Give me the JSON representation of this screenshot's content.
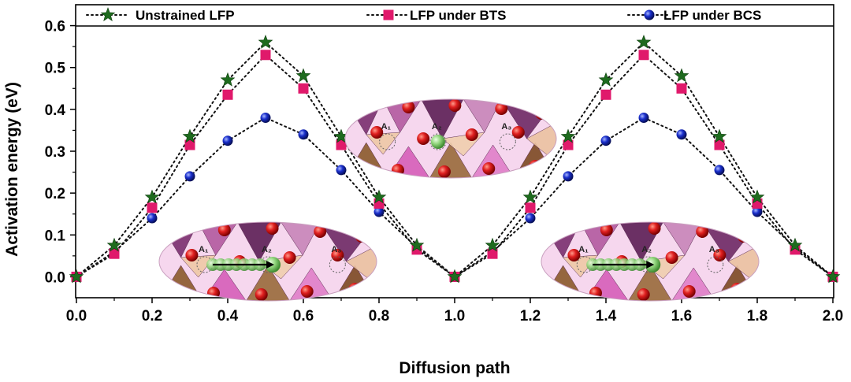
{
  "chart_data": {
    "type": "scatter",
    "xlabel": "Diffusion path",
    "ylabel": "Activation energy (eV)",
    "xlim": [
      0.0,
      2.0
    ],
    "ylim": [
      -0.05,
      0.65
    ],
    "xticks": [
      "0.0",
      "0.2",
      "0.4",
      "0.6",
      "0.8",
      "1.0",
      "1.2",
      "1.4",
      "1.6",
      "1.8",
      "2.0"
    ],
    "yticks": [
      "0.0",
      "0.1",
      "0.2",
      "0.3",
      "0.4",
      "0.5",
      "0.6"
    ],
    "legend_position": "top",
    "grid": false,
    "x": [
      0.0,
      0.1,
      0.2,
      0.3,
      0.4,
      0.5,
      0.6,
      0.7,
      0.8,
      0.9,
      1.0,
      1.1,
      1.2,
      1.3,
      1.4,
      1.5,
      1.6,
      1.7,
      1.8,
      1.9,
      2.0
    ],
    "series": [
      {
        "name": "Unstrained LFP",
        "marker": "star",
        "color": "#1e6b1e",
        "values": [
          0.0,
          0.075,
          0.19,
          0.335,
          0.47,
          0.56,
          0.48,
          0.335,
          0.19,
          0.075,
          0.0,
          0.075,
          0.19,
          0.335,
          0.47,
          0.56,
          0.48,
          0.335,
          0.19,
          0.075,
          0.0
        ]
      },
      {
        "name": "LFP under BTS",
        "marker": "square",
        "color": "#e0196b",
        "values": [
          0.0,
          0.055,
          0.165,
          0.315,
          0.435,
          0.53,
          0.45,
          0.315,
          0.175,
          0.065,
          0.0,
          0.055,
          0.165,
          0.315,
          0.435,
          0.53,
          0.45,
          0.315,
          0.175,
          0.065,
          0.0
        ]
      },
      {
        "name": "LFP under BCS",
        "marker": "circle",
        "color": "#1a2fb0",
        "values": [
          0.0,
          0.06,
          0.14,
          0.24,
          0.325,
          0.38,
          0.34,
          0.255,
          0.155,
          0.07,
          0.0,
          0.06,
          0.14,
          0.24,
          0.325,
          0.38,
          0.34,
          0.255,
          0.155,
          0.07,
          0.0
        ]
      }
    ],
    "insets": [
      {
        "id": "inset-center",
        "sites": [
          "A₁",
          "A₂",
          "A₃"
        ],
        "arrow": false
      },
      {
        "id": "inset-left",
        "sites": [
          "A₁",
          "A₂",
          "A₃"
        ],
        "arrow": true
      },
      {
        "id": "inset-right",
        "sites": [
          "A₁",
          "A₂",
          "A₃"
        ],
        "arrow": true
      }
    ]
  }
}
